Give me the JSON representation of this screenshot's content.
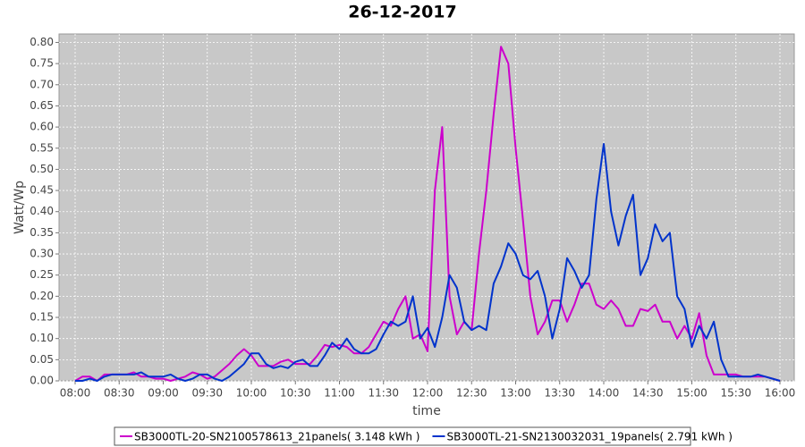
{
  "chart_data": {
    "type": "line",
    "title": "26-12-2017",
    "x_label": "time",
    "y_label": "Watt/Wp",
    "x": [
      "08:00",
      "08:05",
      "08:10",
      "08:15",
      "08:20",
      "08:25",
      "08:30",
      "08:35",
      "08:40",
      "08:45",
      "08:50",
      "08:55",
      "09:00",
      "09:05",
      "09:10",
      "09:15",
      "09:20",
      "09:25",
      "09:30",
      "09:35",
      "09:40",
      "09:45",
      "09:50",
      "09:55",
      "10:00",
      "10:05",
      "10:10",
      "10:15",
      "10:20",
      "10:25",
      "10:30",
      "10:35",
      "10:40",
      "10:45",
      "10:50",
      "10:55",
      "11:00",
      "11:05",
      "11:10",
      "11:15",
      "11:20",
      "11:25",
      "11:30",
      "11:35",
      "11:40",
      "11:45",
      "11:50",
      "11:55",
      "12:00",
      "12:05",
      "12:10",
      "12:15",
      "12:20",
      "12:25",
      "12:30",
      "12:35",
      "12:40",
      "12:45",
      "12:50",
      "12:55",
      "13:00",
      "13:05",
      "13:10",
      "13:15",
      "13:20",
      "13:25",
      "13:30",
      "13:35",
      "13:40",
      "13:45",
      "13:50",
      "13:55",
      "14:00",
      "14:05",
      "14:10",
      "14:15",
      "14:20",
      "14:25",
      "14:30",
      "14:35",
      "14:40",
      "14:45",
      "14:50",
      "14:55",
      "15:00",
      "15:05",
      "15:10",
      "15:15",
      "15:20",
      "15:25",
      "15:30",
      "15:35",
      "15:40",
      "15:45",
      "15:50",
      "15:55",
      "16:00"
    ],
    "xticks": [
      "08:00",
      "08:30",
      "09:00",
      "09:30",
      "10:00",
      "10:30",
      "11:00",
      "11:30",
      "12:00",
      "12:30",
      "13:00",
      "13:30",
      "14:00",
      "14:30",
      "15:00",
      "15:30",
      "16:00"
    ],
    "ylim": [
      0,
      0.82
    ],
    "yticks": [
      {
        "value": 0,
        "label": "0.00"
      },
      {
        "value": 0.05,
        "label": "0.05"
      },
      {
        "value": 0.1,
        "label": "0.10"
      },
      {
        "value": 0.15,
        "label": "0.15"
      },
      {
        "value": 0.2,
        "label": "0.20"
      },
      {
        "value": 0.25,
        "label": "0.25"
      },
      {
        "value": 0.3,
        "label": "0.30"
      },
      {
        "value": 0.35,
        "label": "0.35"
      },
      {
        "value": 0.4,
        "label": "0.40"
      },
      {
        "value": 0.45,
        "label": "0.45"
      },
      {
        "value": 0.5,
        "label": "0.50"
      },
      {
        "value": 0.55,
        "label": "0.55"
      },
      {
        "value": 0.6,
        "label": "0.60"
      },
      {
        "value": 0.65,
        "label": "0.65"
      },
      {
        "value": 0.7,
        "label": "0.70"
      },
      {
        "value": 0.75,
        "label": "0.75"
      },
      {
        "value": 0.8,
        "label": "0.80"
      }
    ],
    "grid": true,
    "legend": "bottom",
    "series": [
      {
        "name": "SB3000TL-20-SN2100578613_21panels( 3.148 kWh )",
        "color": "#cc00cc",
        "values": [
          0,
          0.01,
          0.01,
          0,
          0.015,
          0.015,
          0.015,
          0.015,
          0.02,
          0.01,
          0.01,
          0.005,
          0.005,
          0,
          0.005,
          0.01,
          0.02,
          0.015,
          0.005,
          0.01,
          0.025,
          0.04,
          0.06,
          0.075,
          0.06,
          0.035,
          0.035,
          0.035,
          0.045,
          0.05,
          0.04,
          0.04,
          0.04,
          0.06,
          0.085,
          0.08,
          0.085,
          0.08,
          0.065,
          0.065,
          0.08,
          0.11,
          0.14,
          0.13,
          0.17,
          0.2,
          0.1,
          0.11,
          0.07,
          0.45,
          0.6,
          0.2,
          0.11,
          0.14,
          0.12,
          0.3,
          0.45,
          0.63,
          0.79,
          0.75,
          0.55,
          0.38,
          0.2,
          0.11,
          0.14,
          0.19,
          0.19,
          0.14,
          0.18,
          0.23,
          0.23,
          0.18,
          0.17,
          0.19,
          0.17,
          0.13,
          0.13,
          0.17,
          0.165,
          0.18,
          0.14,
          0.14,
          0.1,
          0.13,
          0.1,
          0.16,
          0.06,
          0.015,
          0.015,
          0.015,
          0.015,
          0.01,
          0.01,
          0.01,
          0.01,
          0.005,
          0
        ]
      },
      {
        "name": "SB3000TL-21-SN2130032031_19panels( 2.791 kWh )",
        "color": "#0033cc",
        "values": [
          0,
          0,
          0.005,
          0,
          0.01,
          0.015,
          0.015,
          0.015,
          0.015,
          0.02,
          0.01,
          0.01,
          0.01,
          0.015,
          0.005,
          0,
          0.005,
          0.015,
          0.015,
          0.005,
          0,
          0.01,
          0.025,
          0.04,
          0.065,
          0.065,
          0.04,
          0.03,
          0.035,
          0.03,
          0.045,
          0.05,
          0.035,
          0.035,
          0.06,
          0.09,
          0.075,
          0.1,
          0.075,
          0.065,
          0.065,
          0.075,
          0.11,
          0.14,
          0.13,
          0.14,
          0.2,
          0.1,
          0.125,
          0.08,
          0.15,
          0.25,
          0.22,
          0.14,
          0.12,
          0.13,
          0.12,
          0.23,
          0.27,
          0.325,
          0.3,
          0.25,
          0.24,
          0.26,
          0.2,
          0.1,
          0.17,
          0.29,
          0.26,
          0.22,
          0.25,
          0.43,
          0.56,
          0.4,
          0.32,
          0.39,
          0.44,
          0.25,
          0.29,
          0.37,
          0.33,
          0.35,
          0.2,
          0.17,
          0.08,
          0.13,
          0.1,
          0.14,
          0.05,
          0.01,
          0.01,
          0.01,
          0.01,
          0.015,
          0.01,
          0.005,
          0
        ]
      }
    ]
  }
}
